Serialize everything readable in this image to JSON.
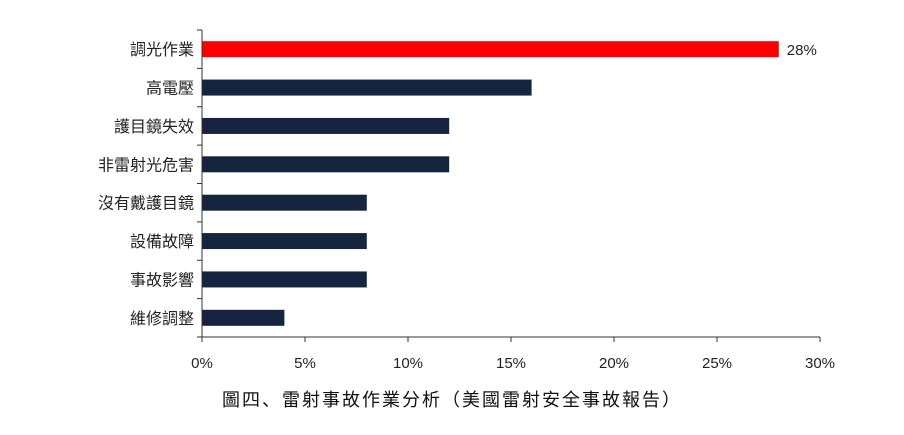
{
  "colors": {
    "highlight": "#ff0000",
    "bar": "#16253f",
    "axis": "#333333"
  },
  "chart_data": {
    "type": "bar",
    "orientation": "horizontal",
    "categories": [
      "調光作業",
      "高電壓",
      "護目鏡失效",
      "非雷射光危害",
      "沒有戴護目鏡",
      "設備故障",
      "事故影響",
      "維修調整"
    ],
    "values": [
      28,
      16,
      12,
      12,
      8,
      8,
      8,
      4
    ],
    "highlight_index": 0,
    "data_labels": [
      "28%",
      null,
      null,
      null,
      null,
      null,
      null,
      null
    ],
    "xlim": [
      0,
      30
    ],
    "xticks": [
      0,
      5,
      10,
      15,
      20,
      25,
      30
    ],
    "xtick_labels": [
      "0%",
      "5%",
      "10%",
      "15%",
      "20%",
      "25%",
      "30%"
    ],
    "grid": false,
    "legend": "none",
    "title": "",
    "xlabel": "",
    "ylabel": ""
  },
  "caption": "圖四、雷射事故作業分析（美國雷射安全事故報告）"
}
